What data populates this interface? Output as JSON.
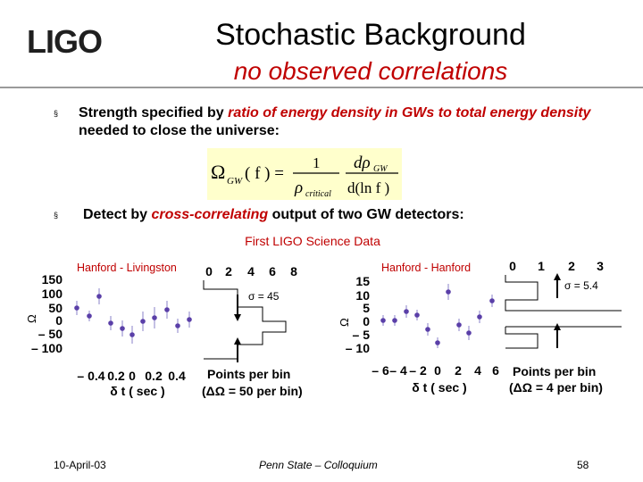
{
  "header": {
    "logo_text": "LIGO",
    "title": "Stochastic Background",
    "subtitle": "no observed correlations"
  },
  "bullets": [
    {
      "marker": "§",
      "pre": "Strength specified by ",
      "emph": "ratio of energy density in GWs to total energy density",
      "post": " needed to close the universe:"
    },
    {
      "marker": "§",
      "pre": "Detect by ",
      "emph": "cross-correlating",
      "post": " output of two GW detectors:"
    }
  ],
  "formula": {
    "lhs_symbol": "Ω",
    "lhs_sub": "GW",
    "lhs_arg": "( f ) =",
    "frac1_num": "1",
    "frac1_den": "ρ",
    "frac1_den_sub": "critical",
    "frac2_num": "dρ",
    "frac2_num_sub": "GW",
    "frac2_den": "d(ln f )"
  },
  "science_label": "First LIGO Science Data",
  "plots": {
    "left": {
      "label": "Hanford - Livingston",
      "y_axis_title": "Ω",
      "y_ticks": [
        "150",
        "100",
        "50",
        "0",
        "– 50",
        "– 100"
      ],
      "x_ticks": [
        "– 0.4",
        "0.2",
        "0",
        "0.2",
        "0.4"
      ],
      "x_title": "δ t ( sec )",
      "hist_ticks": [
        "0",
        "2",
        "4",
        "6",
        "8"
      ],
      "sigma_text": "σ = 45",
      "points_text": "Points per bin",
      "delta_text": "(ΔΩ = 50 per bin)"
    },
    "right": {
      "label": "Hanford - Hanford",
      "y_axis_title": "Ω",
      "y_ticks": [
        "15",
        "10",
        "5",
        "0",
        "– 5",
        "– 10"
      ],
      "x_ticks": [
        "– 6",
        "– 4",
        "– 2",
        "0",
        "2",
        "4",
        "6"
      ],
      "x_title": "δ t ( sec )",
      "hist_ticks": [
        "0",
        "1",
        "2",
        "3"
      ],
      "sigma_text": "σ = 5.4",
      "points_text": "Points per bin",
      "delta_text": "(ΔΩ = 4 per bin)"
    }
  },
  "footer": {
    "date": "10-April-03",
    "venue": "Penn State – Colloquium",
    "page": "58"
  },
  "colors": {
    "title_accent": "#c00000",
    "formula_bg": "#ffffcc",
    "point_color": "#5a3fa8",
    "error_color": "#8a80c8"
  }
}
